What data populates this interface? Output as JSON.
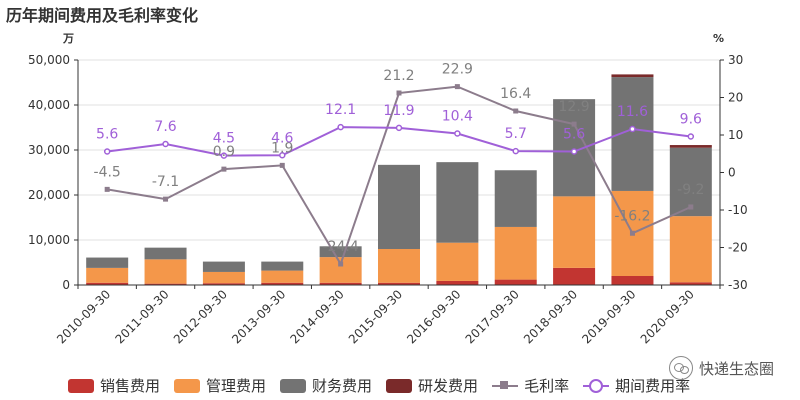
{
  "title": "历年期间费用及毛利率变化",
  "watermark": "快递生态圈",
  "chart_data": {
    "type": "bar",
    "stacked": true,
    "left_unit": "万",
    "right_unit": "%",
    "categories": [
      "2010-09-30",
      "2011-09-30",
      "2012-09-30",
      "2013-09-30",
      "2014-09-30",
      "2015-09-30",
      "2016-09-30",
      "2017-09-30",
      "2018-09-30",
      "2019-09-30",
      "2020-09-30"
    ],
    "ylim_left": [
      0,
      50000
    ],
    "yticks_left": [
      0,
      10000,
      20000,
      30000,
      40000,
      50000
    ],
    "ytick_labels_left": [
      "0",
      "10,000",
      "20,000",
      "30,000",
      "40,000",
      "50,000"
    ],
    "ylim_right": [
      -30,
      30
    ],
    "yticks_right": [
      -30,
      -20,
      -10,
      0,
      10,
      20,
      30
    ],
    "ytick_labels_right": [
      "-30",
      "-20",
      "-10",
      "0",
      "10",
      "20",
      "30"
    ],
    "bar_series": [
      {
        "name": "销售费用",
        "color": "#c23531",
        "values": [
          500,
          300,
          400,
          500,
          500,
          500,
          900,
          1200,
          3800,
          2000,
          600
        ]
      },
      {
        "name": "管理费用",
        "color": "#f4974a",
        "values": [
          3300,
          5400,
          2500,
          2700,
          5700,
          7500,
          8500,
          11700,
          15900,
          18900,
          14700
        ]
      },
      {
        "name": "财务费用",
        "color": "#737373",
        "values": [
          2300,
          2600,
          2300,
          2000,
          2400,
          18700,
          17900,
          12600,
          21600,
          25300,
          15200
        ]
      },
      {
        "name": "研发费用",
        "color": "#7a2a2a",
        "values": [
          0,
          0,
          0,
          0,
          0,
          0,
          0,
          0,
          0,
          600,
          600
        ]
      }
    ],
    "line_series": [
      {
        "name": "毛利率",
        "color": "#8c7c8c",
        "marker": "square",
        "values": [
          -4.5,
          -7.1,
          0.9,
          1.9,
          -24.4,
          21.2,
          22.9,
          16.4,
          12.9,
          -16.2,
          -9.2
        ],
        "labels": [
          "-4.5",
          "-7.1",
          "0.9",
          "1.9",
          "-24.4",
          "21.2",
          "22.9",
          "16.4",
          "12.9",
          "-16.2",
          "-9.2"
        ]
      },
      {
        "name": "期间费用率",
        "color": "#a060d8",
        "marker": "circle",
        "values": [
          5.6,
          7.6,
          4.5,
          4.6,
          12.1,
          11.9,
          10.4,
          5.7,
          5.6,
          11.6,
          9.6
        ],
        "labels": [
          "5.6",
          "7.6",
          "4.5",
          "4.6",
          "12.1",
          "11.9",
          "10.4",
          "5.7",
          "5.6",
          "11.6",
          "9.6"
        ]
      }
    ]
  }
}
